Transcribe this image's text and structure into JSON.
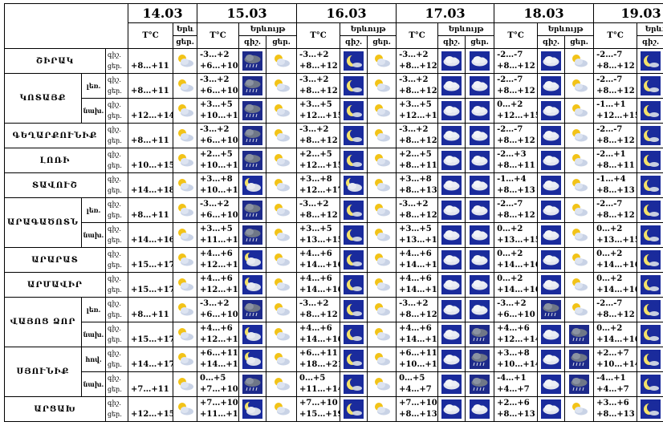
{
  "header": {
    "dates": [
      "14.03",
      "15.03",
      "16.03",
      "17.03",
      "18.03",
      "19.03"
    ],
    "temp_label": "T°C",
    "phenomena_label": "Երևույթ",
    "phenomena_label_short": "Երև",
    "night_label": "գիշ.",
    "day_label": "ցեր."
  },
  "icon_types": {
    "sun-cloud": "sun behind cloud",
    "dark-cloud": "dark cloud with precipitation",
    "moon": "crescent moon",
    "moon-cloud": "moon behind cloud",
    "cloud": "cloud"
  },
  "rows": [
    {
      "region": "ՇԻՐԱԿ",
      "sub": "",
      "first": true,
      "span": 1,
      "d14": {
        "night": "",
        "day": "+8…+11",
        "icon": "sun-cloud"
      },
      "days": [
        {
          "temp_n": "-3…+2",
          "temp_d": "+6…+10",
          "icon_n": "dark-cloud",
          "icon_d": "sun-cloud"
        },
        {
          "temp_n": "-3…+2",
          "temp_d": "+8…+12",
          "icon_n": "moon",
          "icon_d": "sun-cloud"
        },
        {
          "temp_n": "-3…+2",
          "temp_d": "+8…+12",
          "icon_n": "cloud",
          "icon_d": "cloud"
        },
        {
          "temp_n": "-2…-7",
          "temp_d": "+8…+12",
          "icon_n": "cloud",
          "icon_d": "sun-cloud"
        },
        {
          "temp_n": "-2…-7",
          "temp_d": "+8…+12",
          "icon_n": "moon",
          "icon_d": "sun-cloud"
        }
      ]
    },
    {
      "region": "ԿՈՏԱՅՔ",
      "sub": "լեռ.",
      "first": true,
      "span": 2,
      "d14": {
        "night": "",
        "day": "+8…+11",
        "icon": "sun-cloud"
      },
      "days": [
        {
          "temp_n": "-3…+2",
          "temp_d": "+6…+10",
          "icon_n": "dark-cloud",
          "icon_d": "sun-cloud"
        },
        {
          "temp_n": "-3…+2",
          "temp_d": "+8…+12",
          "icon_n": "moon",
          "icon_d": "sun-cloud"
        },
        {
          "temp_n": "-3…+2",
          "temp_d": "+8…+12",
          "icon_n": "cloud",
          "icon_d": "cloud"
        },
        {
          "temp_n": "-2…-7",
          "temp_d": "+8…+12",
          "icon_n": "cloud",
          "icon_d": "sun-cloud"
        },
        {
          "temp_n": "-2…-7",
          "temp_d": "+8…+12",
          "icon_n": "moon",
          "icon_d": "sun-cloud"
        }
      ]
    },
    {
      "region": "",
      "sub": "նախ.",
      "first": false,
      "span": 0,
      "d14": {
        "night": "",
        "day": "+12…+14",
        "icon": "sun-cloud"
      },
      "days": [
        {
          "temp_n": "+3…+5",
          "temp_d": "+10…+13",
          "icon_n": "dark-cloud",
          "icon_d": "sun-cloud"
        },
        {
          "temp_n": "+3…+5",
          "temp_d": "+12…+15",
          "icon_n": "moon",
          "icon_d": "sun-cloud"
        },
        {
          "temp_n": "+3…+5",
          "temp_d": "+12…+15",
          "icon_n": "cloud",
          "icon_d": "cloud"
        },
        {
          "temp_n": "0…+2",
          "temp_d": "+12…+15",
          "icon_n": "cloud",
          "icon_d": "sun-cloud"
        },
        {
          "temp_n": "-1…+1",
          "temp_d": "+12…+15",
          "icon_n": "moon",
          "icon_d": "sun-cloud"
        }
      ]
    },
    {
      "region": "ԳԵՂԱՐՔՈՒՆԻՔ",
      "sub": "",
      "first": true,
      "span": 1,
      "d14": {
        "night": "",
        "day": "+8…+11",
        "icon": "sun-cloud"
      },
      "days": [
        {
          "temp_n": "-3…+2",
          "temp_d": "+6…+10",
          "icon_n": "dark-cloud",
          "icon_d": "sun-cloud"
        },
        {
          "temp_n": "-3…+2",
          "temp_d": "+8…+12",
          "icon_n": "moon",
          "icon_d": "sun-cloud"
        },
        {
          "temp_n": "-3…+2",
          "temp_d": "+8…+12",
          "icon_n": "cloud",
          "icon_d": "cloud"
        },
        {
          "temp_n": "-2…-7",
          "temp_d": "+8…+12",
          "icon_n": "cloud",
          "icon_d": "sun-cloud"
        },
        {
          "temp_n": "-2…-7",
          "temp_d": "+8…+12",
          "icon_n": "moon",
          "icon_d": "sun-cloud"
        }
      ]
    },
    {
      "region": "ԼՈՌԻ",
      "sub": "",
      "first": true,
      "span": 1,
      "d14": {
        "night": "",
        "day": "+10…+15",
        "icon": "sun-cloud"
      },
      "days": [
        {
          "temp_n": "+2…+5",
          "temp_d": "+10…+13",
          "icon_n": "dark-cloud",
          "icon_d": "sun-cloud"
        },
        {
          "temp_n": "+2…+5",
          "temp_d": "+12…+15",
          "icon_n": "moon",
          "icon_d": "sun-cloud"
        },
        {
          "temp_n": "+2…+5",
          "temp_d": "+8…+11",
          "icon_n": "cloud",
          "icon_d": "cloud"
        },
        {
          "temp_n": "-2…+3",
          "temp_d": "+8…+11",
          "icon_n": "cloud",
          "icon_d": "sun-cloud"
        },
        {
          "temp_n": "-2…+1",
          "temp_d": "+8…+11",
          "icon_n": "moon",
          "icon_d": "sun-cloud"
        }
      ]
    },
    {
      "region": "ՏԱՎՈՒՇ",
      "sub": "",
      "first": true,
      "span": 1,
      "d14": {
        "night": "",
        "day": "+14…+18",
        "icon": "sun-cloud"
      },
      "days": [
        {
          "temp_n": "+3…+8",
          "temp_d": "+10…+15",
          "icon_n": "moon-cloud",
          "icon_d": "sun-cloud"
        },
        {
          "temp_n": "+3…+8",
          "temp_d": "+12…+17",
          "icon_n": "moon-cloud",
          "icon_d": "sun-cloud"
        },
        {
          "temp_n": "+3…+8",
          "temp_d": "+8…+13",
          "icon_n": "cloud",
          "icon_d": "cloud"
        },
        {
          "temp_n": "-1…+4",
          "temp_d": "+8…+13",
          "icon_n": "cloud",
          "icon_d": "sun-cloud"
        },
        {
          "temp_n": "-1…+4",
          "temp_d": "+8…+13",
          "icon_n": "moon",
          "icon_d": "sun-cloud"
        }
      ]
    },
    {
      "region": "ԱՐԱԳԱԾՈՏՆ",
      "sub": "լեռ.",
      "first": true,
      "span": 2,
      "d14": {
        "night": "",
        "day": "+8…+11",
        "icon": "sun-cloud"
      },
      "days": [
        {
          "temp_n": "-3…+2",
          "temp_d": "+6…+10",
          "icon_n": "dark-cloud",
          "icon_d": "sun-cloud"
        },
        {
          "temp_n": "-3…+2",
          "temp_d": "+8…+12",
          "icon_n": "moon",
          "icon_d": "sun-cloud"
        },
        {
          "temp_n": "-3…+2",
          "temp_d": "+8…+12",
          "icon_n": "cloud",
          "icon_d": "cloud"
        },
        {
          "temp_n": "-2…-7",
          "temp_d": "+8…+12",
          "icon_n": "cloud",
          "icon_d": "sun-cloud"
        },
        {
          "temp_n": "-2…-7",
          "temp_d": "+8…+12",
          "icon_n": "moon",
          "icon_d": "sun-cloud"
        }
      ]
    },
    {
      "region": "",
      "sub": "նախ.",
      "first": false,
      "span": 0,
      "d14": {
        "night": "",
        "day": "+14…+16",
        "icon": "sun-cloud"
      },
      "days": [
        {
          "temp_n": "+3…+5",
          "temp_d": "+11…+13",
          "icon_n": "dark-cloud",
          "icon_d": "sun-cloud"
        },
        {
          "temp_n": "+3…+5",
          "temp_d": "+13…+15",
          "icon_n": "moon",
          "icon_d": "sun-cloud"
        },
        {
          "temp_n": "+3…+5",
          "temp_d": "+13…+15",
          "icon_n": "cloud",
          "icon_d": "cloud"
        },
        {
          "temp_n": "0…+2",
          "temp_d": "+13…+15",
          "icon_n": "cloud",
          "icon_d": "sun-cloud"
        },
        {
          "temp_n": "0…+2",
          "temp_d": "+13…+15",
          "icon_n": "moon",
          "icon_d": "sun-cloud"
        }
      ]
    },
    {
      "region": "ԱՐԱՐԱՏ",
      "sub": "",
      "first": true,
      "span": 1,
      "d14": {
        "night": "",
        "day": "+15…+17",
        "icon": "sun-cloud"
      },
      "days": [
        {
          "temp_n": "+4…+6",
          "temp_d": "+12…+14",
          "icon_n": "moon-cloud",
          "icon_d": "sun-cloud"
        },
        {
          "temp_n": "+4…+6",
          "temp_d": "+14…+16",
          "icon_n": "moon",
          "icon_d": "sun-cloud"
        },
        {
          "temp_n": "+4…+6",
          "temp_d": "+14…+16",
          "icon_n": "cloud",
          "icon_d": "cloud"
        },
        {
          "temp_n": "0…+2",
          "temp_d": "+14…+16",
          "icon_n": "cloud",
          "icon_d": "sun-cloud"
        },
        {
          "temp_n": "0…+2",
          "temp_d": "+14…+16",
          "icon_n": "moon",
          "icon_d": "sun-cloud"
        }
      ]
    },
    {
      "region": "ԱՐՄԱՎԻՐ",
      "sub": "",
      "first": true,
      "span": 1,
      "d14": {
        "night": "",
        "day": "+15…+17",
        "icon": "sun-cloud"
      },
      "days": [
        {
          "temp_n": "+4…+6",
          "temp_d": "+12…+14",
          "icon_n": "moon-cloud",
          "icon_d": "sun-cloud"
        },
        {
          "temp_n": "+4…+6",
          "temp_d": "+14…+16",
          "icon_n": "moon",
          "icon_d": "sun-cloud"
        },
        {
          "temp_n": "+4…+6",
          "temp_d": "+14…+16",
          "icon_n": "cloud",
          "icon_d": "cloud"
        },
        {
          "temp_n": "0…+2",
          "temp_d": "+14…+16",
          "icon_n": "cloud",
          "icon_d": "sun-cloud"
        },
        {
          "temp_n": "0…+2",
          "temp_d": "+14…+16",
          "icon_n": "moon",
          "icon_d": "sun-cloud"
        }
      ]
    },
    {
      "region": "ՎԱՅՈՑ ՁՈՐ",
      "sub": "լեռ.",
      "first": true,
      "span": 2,
      "d14": {
        "night": "",
        "day": "+8…+11",
        "icon": "sun-cloud"
      },
      "days": [
        {
          "temp_n": "-3…+2",
          "temp_d": "+6…+10",
          "icon_n": "dark-cloud",
          "icon_d": "sun-cloud"
        },
        {
          "temp_n": "-3…+2",
          "temp_d": "+8…+12",
          "icon_n": "moon",
          "icon_d": "sun-cloud"
        },
        {
          "temp_n": "-3…+2",
          "temp_d": "+8…+12",
          "icon_n": "cloud",
          "icon_d": "cloud"
        },
        {
          "temp_n": "-3…+2",
          "temp_d": "+6…+10",
          "icon_n": "dark-cloud",
          "icon_d": "sun-cloud"
        },
        {
          "temp_n": "-2…-7",
          "temp_d": "+8…+12",
          "icon_n": "moon",
          "icon_d": "sun-cloud"
        }
      ]
    },
    {
      "region": "",
      "sub": "նախ.",
      "first": false,
      "span": 0,
      "d14": {
        "night": "",
        "day": "+15…+17",
        "icon": "sun-cloud"
      },
      "days": [
        {
          "temp_n": "+4…+6",
          "temp_d": "+12…+14",
          "icon_n": "moon-cloud",
          "icon_d": "sun-cloud"
        },
        {
          "temp_n": "+4…+6",
          "temp_d": "+14…+16",
          "icon_n": "moon",
          "icon_d": "sun-cloud"
        },
        {
          "temp_n": "+4…+6",
          "temp_d": "+14…+16",
          "icon_n": "cloud",
          "icon_d": "dark-cloud"
        },
        {
          "temp_n": "+4…+6",
          "temp_d": "+12…+14",
          "icon_n": "cloud",
          "icon_d": "dark-cloud"
        },
        {
          "temp_n": "0…+2",
          "temp_d": "+14…+16",
          "icon_n": "moon",
          "icon_d": "sun-cloud"
        }
      ]
    },
    {
      "region": "ՍՅՈՒՆԻՔ",
      "sub": "հով.",
      "first": true,
      "span": 2,
      "d14": {
        "night": "",
        "day": "+14…+17",
        "icon": "sun-cloud"
      },
      "days": [
        {
          "temp_n": "+6…+11",
          "temp_d": "+14…+17",
          "icon_n": "moon-cloud",
          "icon_d": "sun-cloud"
        },
        {
          "temp_n": "+6…+11",
          "temp_d": "+18…+21",
          "icon_n": "moon",
          "icon_d": "sun-cloud"
        },
        {
          "temp_n": "+6…+11",
          "temp_d": "+10…+14",
          "icon_n": "cloud",
          "icon_d": "dark-cloud"
        },
        {
          "temp_n": "+3…+8",
          "temp_d": "+10…+14",
          "icon_n": "cloud",
          "icon_d": "dark-cloud"
        },
        {
          "temp_n": "+2…+7",
          "temp_d": "+10…+14",
          "icon_n": "moon",
          "icon_d": "sun-cloud"
        }
      ]
    },
    {
      "region": "",
      "sub": "նախ.",
      "first": false,
      "span": 0,
      "d14": {
        "night": "",
        "day": "+7…+11",
        "icon": "sun-cloud"
      },
      "days": [
        {
          "temp_n": "0…+5",
          "temp_d": "+7…+10",
          "icon_n": "dark-cloud",
          "icon_d": "sun-cloud"
        },
        {
          "temp_n": "0…+5",
          "temp_d": "+11…+14",
          "icon_n": "moon",
          "icon_d": "sun-cloud"
        },
        {
          "temp_n": "0…+5",
          "temp_d": "+4…+7",
          "icon_n": "cloud",
          "icon_d": "dark-cloud"
        },
        {
          "temp_n": "-4…+1",
          "temp_d": "+4…+7",
          "icon_n": "cloud",
          "icon_d": "dark-cloud"
        },
        {
          "temp_n": "-4…+1",
          "temp_d": "+4…+7",
          "icon_n": "moon",
          "icon_d": "sun-cloud"
        }
      ]
    },
    {
      "region": "ԱՐՑԱԽ",
      "sub": "",
      "first": true,
      "span": 1,
      "d14": {
        "night": "",
        "day": "+12…+15",
        "icon": "sun-cloud"
      },
      "days": [
        {
          "temp_n": "+7…+10",
          "temp_d": "+11…+15",
          "icon_n": "moon-cloud",
          "icon_d": "sun-cloud"
        },
        {
          "temp_n": "+7…+10",
          "temp_d": "+15…+19",
          "icon_n": "moon",
          "icon_d": "sun-cloud"
        },
        {
          "temp_n": "+7…+10",
          "temp_d": "+8…+13",
          "icon_n": "cloud",
          "icon_d": "cloud"
        },
        {
          "temp_n": "+2…+6",
          "temp_d": "+8…+13",
          "icon_n": "cloud",
          "icon_d": "sun-cloud"
        },
        {
          "temp_n": "+3…+6",
          "temp_d": "+8…+13",
          "icon_n": "moon",
          "icon_d": "sun-cloud"
        }
      ]
    }
  ]
}
